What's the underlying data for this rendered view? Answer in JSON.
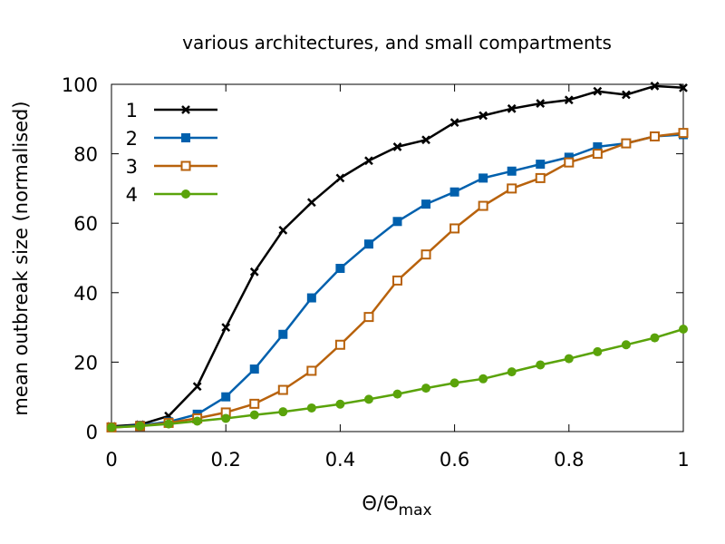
{
  "chart_data": {
    "type": "line",
    "title": "various architectures, and small compartments",
    "xlabel": "Θ/Θ",
    "xlabel_sub": "max",
    "ylabel": "mean outbreak size (normalised)",
    "xlim": [
      0,
      1
    ],
    "ylim": [
      0,
      100
    ],
    "xticks": [
      0,
      0.2,
      0.4,
      0.6,
      0.8,
      1
    ],
    "xtick_labels": [
      "0",
      "0.2",
      "0.4",
      "0.6",
      "0.8",
      "1"
    ],
    "yticks": [
      0,
      20,
      40,
      60,
      80,
      100
    ],
    "ytick_labels": [
      "0",
      "20",
      "40",
      "60",
      "80",
      "100"
    ],
    "legend_position": "top-left",
    "grid": false,
    "x": [
      0,
      0.05,
      0.1,
      0.15,
      0.2,
      0.25,
      0.3,
      0.35,
      0.4,
      0.45,
      0.5,
      0.55,
      0.6,
      0.65,
      0.7,
      0.75,
      0.8,
      0.85,
      0.9,
      0.95,
      1.0
    ],
    "series": [
      {
        "name": "1",
        "color": "#000000",
        "marker": "x",
        "values": [
          1.5,
          2,
          4.5,
          13,
          30,
          46,
          58,
          66,
          73,
          78,
          82,
          84,
          89,
          91,
          93,
          94.5,
          95.5,
          98,
          97,
          99.5,
          99
        ]
      },
      {
        "name": "2",
        "color": "#0060ad",
        "marker": "filled-square",
        "values": [
          1.2,
          1.8,
          2.8,
          5,
          10,
          18,
          28,
          38.5,
          47,
          54,
          60.5,
          65.5,
          69,
          73,
          75,
          77,
          79,
          82,
          83,
          85,
          85.5
        ]
      },
      {
        "name": "3",
        "color": "#b8620c",
        "marker": "open-square",
        "values": [
          1.2,
          1.6,
          2.5,
          3.8,
          5.5,
          8,
          12,
          17.5,
          25,
          33,
          43.5,
          51,
          58.5,
          65,
          70,
          73,
          77.5,
          80,
          83,
          85,
          86
        ]
      },
      {
        "name": "4",
        "color": "#5aa30a",
        "marker": "filled-circle",
        "values": [
          1.2,
          1.6,
          2.2,
          3,
          3.8,
          4.8,
          5.7,
          6.8,
          7.9,
          9.3,
          10.8,
          12.5,
          14,
          15.2,
          17.2,
          19.2,
          21,
          23,
          25,
          27,
          29.5
        ]
      }
    ]
  }
}
